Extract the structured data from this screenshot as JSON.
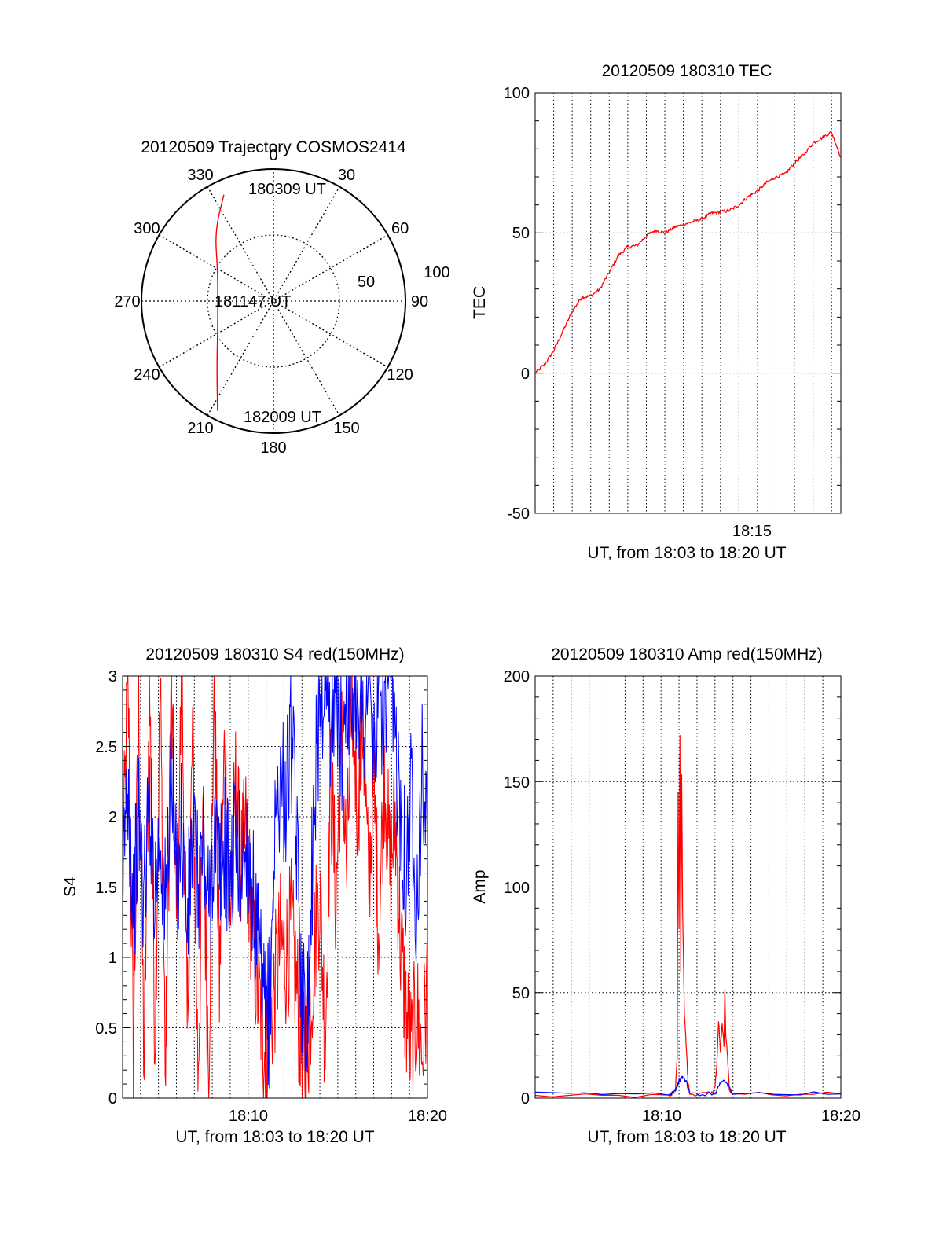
{
  "chart_data": [
    {
      "type": "polar",
      "title": "20120509 Trajectory COSMOS2414",
      "angle_labels": [
        "0",
        "30",
        "60",
        "90",
        "120",
        "150",
        "180",
        "210",
        "240",
        "270",
        "300",
        "330"
      ],
      "radius_labels": [
        "50",
        "100"
      ],
      "time_labels": [
        "180309 UT",
        "181147 UT",
        "182009 UT"
      ],
      "series": [
        {
          "color": "#ff0000",
          "points": [
            {
              "azimuth": 335,
              "elevation": 10
            },
            {
              "azimuth": 320,
              "elevation": 28
            },
            {
              "azimuth": 300,
              "elevation": 46
            },
            {
              "azimuth": 270,
              "elevation": 52
            },
            {
              "azimuth": 240,
              "elevation": 46
            },
            {
              "azimuth": 220,
              "elevation": 30
            },
            {
              "azimuth": 207,
              "elevation": 6
            }
          ]
        }
      ]
    },
    {
      "type": "line",
      "title": "20120509 180310 TEC",
      "ylabel": "TEC",
      "xlabel": "UT, from 18:03 to 18:20 UT",
      "xlim": [
        0,
        16.5
      ],
      "ylim": [
        -50,
        100
      ],
      "yticks": [
        "-50",
        "0",
        "50",
        "100"
      ],
      "xticks": [
        {
          "x": 12,
          "label": "18:15"
        }
      ],
      "grid_x": [
        1,
        2,
        3,
        4,
        5,
        6,
        7,
        8,
        9,
        10,
        11,
        12,
        13,
        14,
        15,
        16
      ],
      "grid_y": [
        0,
        50
      ],
      "series": [
        {
          "color": "#ff0000",
          "points": [
            [
              0,
              0
            ],
            [
              0.5,
              3
            ],
            [
              1,
              8
            ],
            [
              1.5,
              15
            ],
            [
              2,
              22
            ],
            [
              2.5,
              27
            ],
            [
              3,
              27.5
            ],
            [
              3.5,
              30
            ],
            [
              4,
              36
            ],
            [
              4.5,
              42
            ],
            [
              5,
              45
            ],
            [
              5.5,
              45.5
            ],
            [
              6,
              49
            ],
            [
              6.5,
              51
            ],
            [
              7,
              50
            ],
            [
              7.5,
              52
            ],
            [
              8,
              53
            ],
            [
              8.5,
              54
            ],
            [
              9,
              55
            ],
            [
              9.5,
              57
            ],
            [
              10,
              57.5
            ],
            [
              10.5,
              58
            ],
            [
              11,
              60
            ],
            [
              11.5,
              63
            ],
            [
              12,
              65
            ],
            [
              12.5,
              68
            ],
            [
              13,
              70
            ],
            [
              13.5,
              71
            ],
            [
              14,
              75
            ],
            [
              14.5,
              78
            ],
            [
              15,
              82
            ],
            [
              15.5,
              84
            ],
            [
              16,
              86
            ],
            [
              16.5,
              77
            ]
          ]
        }
      ]
    },
    {
      "type": "line",
      "title": "20120509 180310 S4 red(150MHz)",
      "ylabel": "S4",
      "xlabel": "UT, from 18:03 to 18:20 UT",
      "xlim": [
        0,
        17
      ],
      "ylim": [
        0,
        3
      ],
      "yticks": [
        "0",
        "0.5",
        "1",
        "1.5",
        "2",
        "2.5",
        "3"
      ],
      "xticks": [
        {
          "x": 7,
          "label": "18:10"
        },
        {
          "x": 17,
          "label": "18:20"
        }
      ],
      "grid_x": [
        1,
        2,
        3,
        4,
        5,
        6,
        7,
        8,
        9,
        10,
        11,
        12,
        13,
        14,
        15,
        16
      ],
      "grid_y": [
        0.5,
        1,
        1.5,
        2,
        2.5
      ],
      "series": [
        {
          "color": "#ff0000",
          "points": [
            [
              0,
              1.5
            ],
            [
              0.3,
              3
            ],
            [
              0.6,
              0.3
            ],
            [
              0.9,
              2.8
            ],
            [
              1.2,
              0.2
            ],
            [
              1.5,
              3
            ],
            [
              1.8,
              0.5
            ],
            [
              2.1,
              2.9
            ],
            [
              2.4,
              0.1
            ],
            [
              2.7,
              3
            ],
            [
              3,
              1.2
            ],
            [
              3.3,
              3
            ],
            [
              3.6,
              0.4
            ],
            [
              3.9,
              2.6
            ],
            [
              4.2,
              0.2
            ],
            [
              4.5,
              1.9
            ],
            [
              4.8,
              0.2
            ],
            [
              5.1,
              3
            ],
            [
              5.4,
              0.8
            ],
            [
              5.7,
              2.6
            ],
            [
              6,
              1.3
            ],
            [
              6.3,
              2.2
            ],
            [
              6.6,
              1.6
            ],
            [
              6.9,
              1.9
            ],
            [
              7.2,
              1.2
            ],
            [
              7.5,
              0.8
            ],
            [
              7.8,
              0.5
            ],
            [
              8,
              0.25
            ],
            [
              8.2,
              0.5
            ],
            [
              8.5,
              0.8
            ],
            [
              8.8,
              1.1
            ],
            [
              9.1,
              1.0
            ],
            [
              9.4,
              1.2
            ],
            [
              9.7,
              0.8
            ],
            [
              10,
              0.3
            ],
            [
              10.2,
              0.2
            ],
            [
              10.4,
              0.5
            ],
            [
              10.7,
              1.1
            ],
            [
              11,
              1.5
            ],
            [
              11.3,
              0.4
            ],
            [
              11.6,
              2.3
            ],
            [
              11.9,
              1.4
            ],
            [
              12.2,
              2.6
            ],
            [
              12.5,
              1.6
            ],
            [
              12.8,
              2.9
            ],
            [
              13.1,
              2.1
            ],
            [
              13.4,
              2.7
            ],
            [
              13.7,
              1.5
            ],
            [
              14,
              2.2
            ],
            [
              14.3,
              1.2
            ],
            [
              14.6,
              2.4
            ],
            [
              14.9,
              1.6
            ],
            [
              15.2,
              2.0
            ],
            [
              15.5,
              1.1
            ],
            [
              15.8,
              0.6
            ],
            [
              16.1,
              0.3
            ],
            [
              16.4,
              0.6
            ],
            [
              16.7,
              0.3
            ],
            [
              17,
              0.8
            ]
          ]
        },
        {
          "color": "#0000ff",
          "points": [
            [
              0,
              1.6
            ],
            [
              0.3,
              2.3
            ],
            [
              0.6,
              1.3
            ],
            [
              0.9,
              2.0
            ],
            [
              1.2,
              1.4
            ],
            [
              1.5,
              2.2
            ],
            [
              1.8,
              1.5
            ],
            [
              2.1,
              1.9
            ],
            [
              2.4,
              1.3
            ],
            [
              2.7,
              2.4
            ],
            [
              3,
              1.5
            ],
            [
              3.3,
              2.0
            ],
            [
              3.6,
              1.2
            ],
            [
              3.9,
              1.9
            ],
            [
              4.2,
              1.5
            ],
            [
              4.5,
              1.8
            ],
            [
              4.8,
              1.3
            ],
            [
              5.1,
              1.9
            ],
            [
              5.4,
              1.6
            ],
            [
              5.7,
              1.8
            ],
            [
              6,
              1.5
            ],
            [
              6.3,
              1.9
            ],
            [
              6.6,
              1.6
            ],
            [
              6.9,
              1.8
            ],
            [
              7.2,
              1.5
            ],
            [
              7.5,
              1.1
            ],
            [
              7.8,
              0.7
            ],
            [
              8,
              0.5
            ],
            [
              8.2,
              0.7
            ],
            [
              8.5,
              1.9
            ],
            [
              8.8,
              2.3
            ],
            [
              9.1,
              2.1
            ],
            [
              9.4,
              2.6
            ],
            [
              9.7,
              1.8
            ],
            [
              10,
              0.8
            ],
            [
              10.2,
              0.5
            ],
            [
              10.4,
              0.9
            ],
            [
              10.7,
              2.2
            ],
            [
              11,
              2.8
            ],
            [
              11.3,
              3
            ],
            [
              11.6,
              2.7
            ],
            [
              11.9,
              3
            ],
            [
              12.2,
              2.5
            ],
            [
              12.5,
              3
            ],
            [
              12.8,
              2.8
            ],
            [
              13.1,
              3
            ],
            [
              13.4,
              2.6
            ],
            [
              13.7,
              3
            ],
            [
              14,
              2.4
            ],
            [
              14.3,
              2.9
            ],
            [
              14.6,
              2.7
            ],
            [
              14.9,
              3
            ],
            [
              15.2,
              2.5
            ],
            [
              15.5,
              2.1
            ],
            [
              15.8,
              1.6
            ],
            [
              16.1,
              2.2
            ],
            [
              16.4,
              1.4
            ],
            [
              16.7,
              2.3
            ],
            [
              17,
              1.9
            ]
          ]
        }
      ]
    },
    {
      "type": "line",
      "title": "20120509 180310 Amp red(150MHz)",
      "ylabel": "Amp",
      "xlabel": "UT, from 18:03 to 18:20 UT",
      "xlim": [
        0,
        17
      ],
      "ylim": [
        0,
        200
      ],
      "yticks": [
        "0",
        "50",
        "100",
        "150",
        "200"
      ],
      "xticks": [
        {
          "x": 7,
          "label": "18:10"
        },
        {
          "x": 17,
          "label": "18:20"
        }
      ],
      "grid_x": [
        1,
        2,
        3,
        4,
        5,
        6,
        7,
        8,
        9,
        10,
        11,
        12,
        13,
        14,
        15,
        16
      ],
      "grid_y": [
        50,
        100,
        150
      ],
      "series": [
        {
          "color": "#ff0000",
          "points": [
            [
              0,
              1
            ],
            [
              7.4,
              1
            ],
            [
              7.6,
              2
            ],
            [
              7.8,
              4
            ],
            [
              7.9,
              20
            ],
            [
              7.95,
              145
            ],
            [
              8.0,
              80
            ],
            [
              8.05,
              172
            ],
            [
              8.1,
              60
            ],
            [
              8.15,
              153
            ],
            [
              8.2,
              90
            ],
            [
              8.3,
              40
            ],
            [
              8.4,
              25
            ],
            [
              8.5,
              8
            ],
            [
              8.6,
              2
            ],
            [
              9.8,
              2
            ],
            [
              10.0,
              5
            ],
            [
              10.1,
              15
            ],
            [
              10.2,
              37
            ],
            [
              10.3,
              22
            ],
            [
              10.4,
              36
            ],
            [
              10.5,
              25
            ],
            [
              10.55,
              52
            ],
            [
              10.6,
              30
            ],
            [
              10.7,
              20
            ],
            [
              10.8,
              4
            ],
            [
              10.9,
              2
            ],
            [
              17,
              2
            ]
          ]
        },
        {
          "color": "#0000ff",
          "points": [
            [
              0,
              2
            ],
            [
              7.5,
              2
            ],
            [
              7.8,
              4
            ],
            [
              8.0,
              8
            ],
            [
              8.2,
              10
            ],
            [
              8.4,
              8
            ],
            [
              8.6,
              2
            ],
            [
              10.0,
              2
            ],
            [
              10.2,
              6
            ],
            [
              10.5,
              9
            ],
            [
              10.8,
              5
            ],
            [
              11.0,
              2
            ],
            [
              17,
              2
            ]
          ]
        }
      ]
    }
  ]
}
